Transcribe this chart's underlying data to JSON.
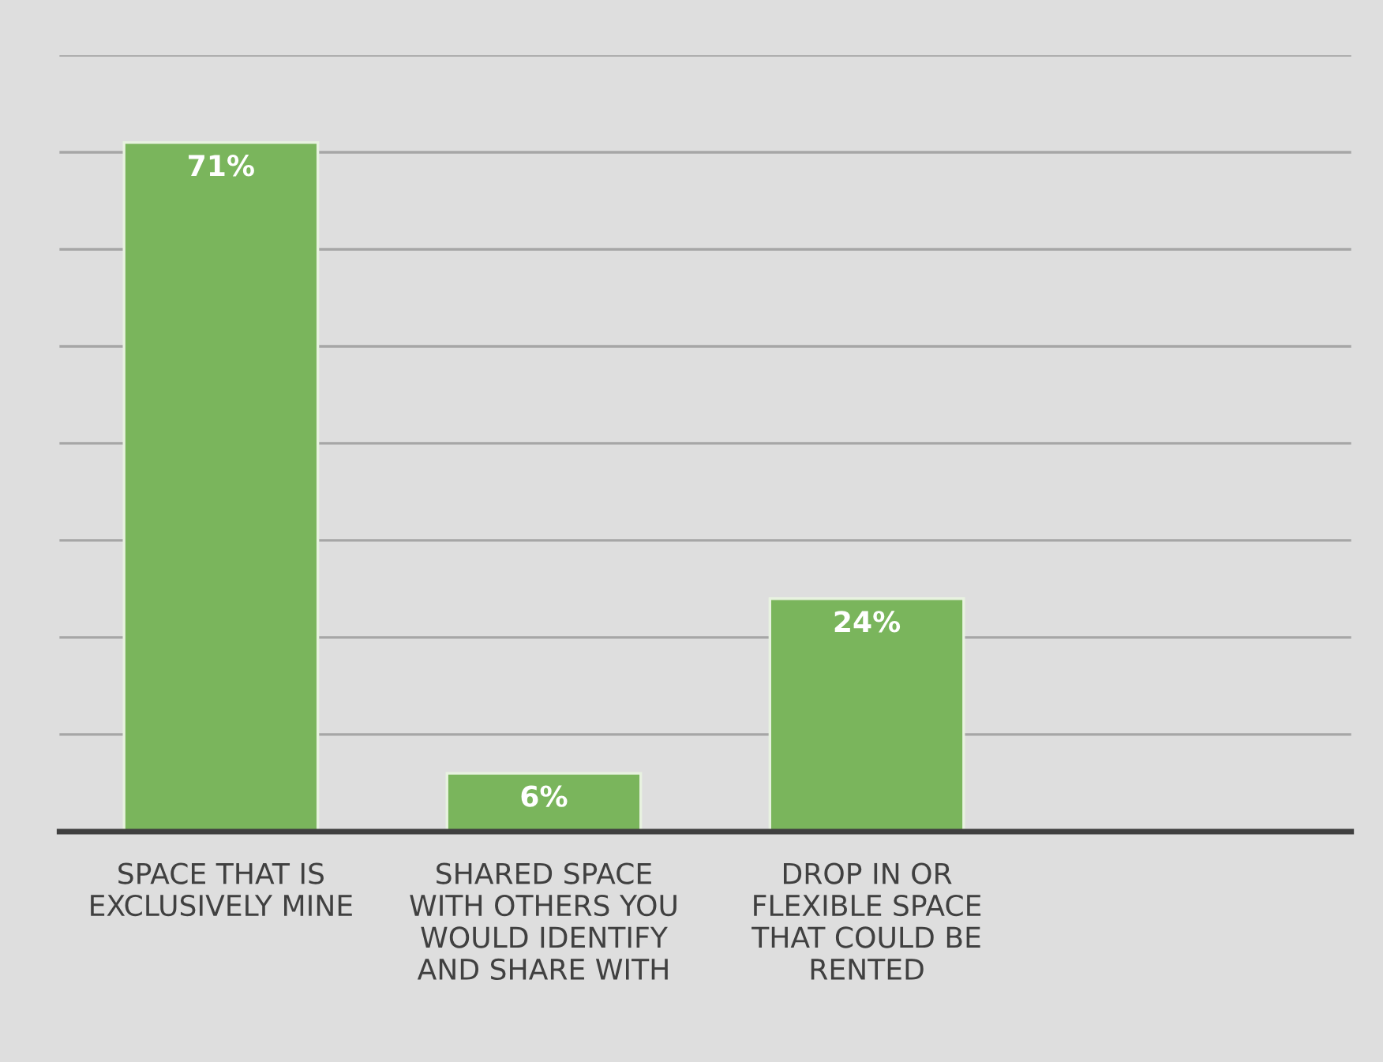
{
  "chart_data": {
    "type": "bar",
    "categories": [
      "SPACE THAT IS\nEXCLUSIVELY MINE",
      "SHARED SPACE\nWITH OTHERS YOU\nWOULD IDENTIFY\nAND SHARE WITH",
      "DROP IN OR\nFLEXIBLE SPACE\nTHAT COULD BE\nRENTED",
      null
    ],
    "values": [
      71,
      6,
      24,
      null
    ],
    "value_labels": [
      "71%",
      "6%",
      "24%",
      null
    ],
    "color": "#7ab55c",
    "ylim": [
      0,
      80
    ],
    "yticks": [
      {
        "value": 0,
        "label": null
      },
      {
        "value": 10,
        "label": null
      },
      {
        "value": 20,
        "label": null
      },
      {
        "value": 30,
        "label": null
      },
      {
        "value": 40,
        "label": null
      },
      {
        "value": 50,
        "label": null
      },
      {
        "value": 60,
        "label": null
      },
      {
        "value": 70,
        "label": null
      },
      {
        "value": 80,
        "label": null
      }
    ],
    "grid": "y",
    "tick_labels": "x"
  }
}
